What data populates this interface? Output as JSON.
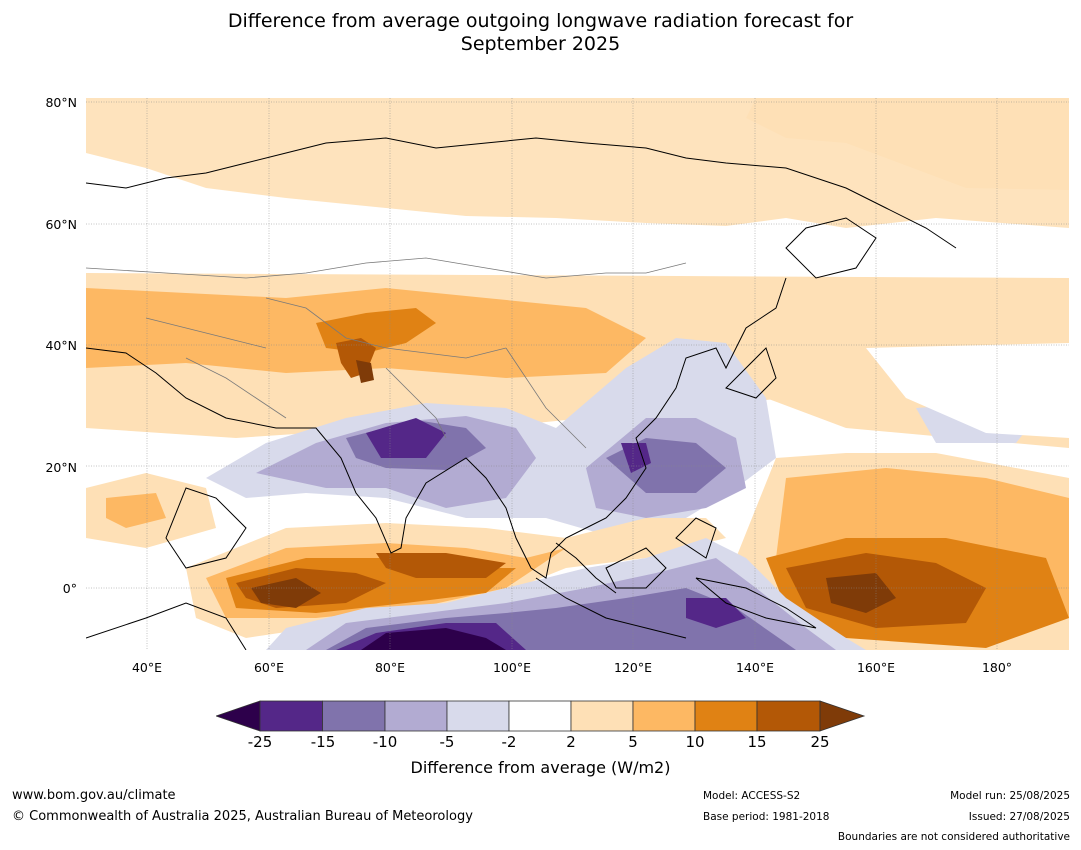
{
  "title_line1": "Difference from average outgoing longwave radiation forecast for",
  "title_line2": "September 2025",
  "map": {
    "lat_labels": [
      "80°N",
      "60°N",
      "40°N",
      "20°N",
      "0°"
    ],
    "lon_labels": [
      "40°E",
      "60°E",
      "80°E",
      "100°E",
      "120°E",
      "140°E",
      "160°E",
      "180°"
    ],
    "colors": {
      "neg25": "#2d004b",
      "neg15": "#542788",
      "neg10": "#8073ac",
      "neg5": "#b2abd2",
      "neg2": "#d8daeb",
      "zero": "#ffffff",
      "pos2": "#fee0b6",
      "pos5": "#fdb863",
      "pos10": "#e08214",
      "pos15": "#b35806",
      "pos25": "#7f3b08"
    }
  },
  "colorbar": {
    "ticks": [
      "-25",
      "-15",
      "-10",
      "-5",
      "-2",
      "2",
      "5",
      "10",
      "15",
      "25"
    ],
    "colors": [
      "#2d004b",
      "#542788",
      "#8073ac",
      "#b2abd2",
      "#d8daeb",
      "#ffffff",
      "#fee0b6",
      "#fdb863",
      "#e08214",
      "#b35806",
      "#7f3b08"
    ],
    "label": "Difference from average (W/m2)"
  },
  "footer": {
    "website": "www.bom.gov.au/climate",
    "copyright": "© Commonwealth of Australia 2025, Australian Bureau of Meteorology",
    "model": "Model: ACCESS-S2",
    "base_period": "Base period: 1981-2018",
    "model_run": "Model run: 25/08/2025",
    "issued": "Issued: 27/08/2025",
    "disclaimer": "Boundaries are not considered authoritative"
  }
}
